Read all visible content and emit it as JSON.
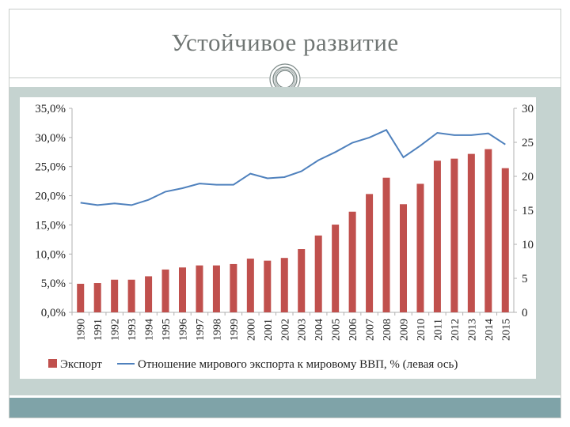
{
  "slide": {
    "title": "Устойчивое развитие",
    "colors": {
      "frame": "#c7ccc9",
      "band": "#c5d3d0",
      "bottom_bar": "#7fa3a8",
      "title": "#6f7573"
    }
  },
  "chart_data": {
    "type": "bar+line",
    "categories": [
      "1990",
      "1991",
      "1992",
      "1993",
      "1994",
      "1995",
      "1996",
      "1997",
      "1998",
      "1999",
      "2000",
      "2001",
      "2002",
      "2003",
      "2004",
      "2005",
      "2006",
      "2007",
      "2008",
      "2009",
      "2010",
      "2011",
      "2012",
      "2013",
      "2014",
      "2015"
    ],
    "series": [
      {
        "name": "Экспорт",
        "type": "bar",
        "axis": "right",
        "color": "#c0504d",
        "values": [
          4.2,
          4.3,
          4.8,
          4.8,
          5.3,
          6.3,
          6.6,
          6.9,
          6.9,
          7.1,
          7.9,
          7.6,
          8.0,
          9.3,
          11.3,
          12.9,
          14.8,
          17.4,
          19.8,
          15.9,
          18.9,
          22.3,
          22.6,
          23.3,
          24.0,
          21.2
        ]
      },
      {
        "name": "Отношение мирового экспорта к мировому ВВП, % (левая ось)",
        "type": "line",
        "axis": "left",
        "color": "#4f81bd",
        "values": [
          18.8,
          18.4,
          18.7,
          18.4,
          19.3,
          20.7,
          21.3,
          22.1,
          21.9,
          21.9,
          23.8,
          23.0,
          23.2,
          24.2,
          26.1,
          27.5,
          29.1,
          30.0,
          31.3,
          26.6,
          28.6,
          30.8,
          30.4,
          30.4,
          30.7,
          28.8
        ]
      }
    ],
    "y_left": {
      "ticks": [
        "0,0%",
        "5,0%",
        "10,0%",
        "15,0%",
        "20,0%",
        "25,0%",
        "30,0%",
        "35,0%"
      ],
      "min": 0,
      "max": 35,
      "step": 5
    },
    "y_right": {
      "ticks": [
        "0",
        "5",
        "10",
        "15",
        "20",
        "25",
        "30"
      ],
      "min": 0,
      "max": 30,
      "step": 5
    },
    "legend": {
      "position": "bottom",
      "bar_label": "Экспорт",
      "line_label": "Отношение мирового экспорта к мировому ВВП, % (левая ось)"
    },
    "grid": false,
    "colors": {
      "axis": "#b0b0b0"
    }
  }
}
